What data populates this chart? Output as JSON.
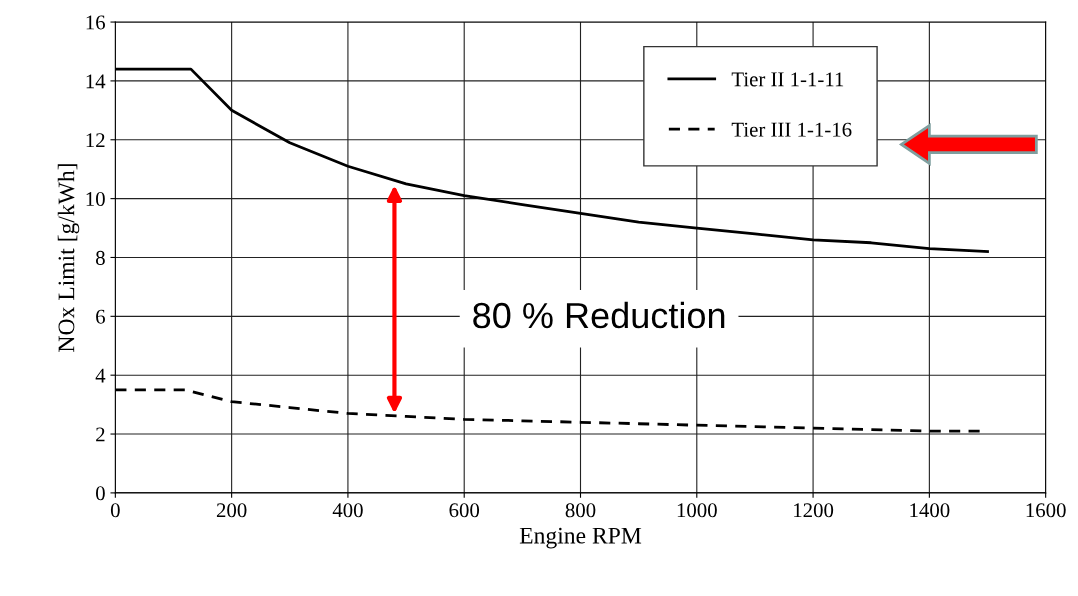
{
  "chart_data": {
    "type": "line",
    "xlabel": "Engine RPM",
    "ylabel": "NOx Limit [g/kWh]",
    "xlim": [
      0,
      1600
    ],
    "xticks": [
      0,
      200,
      400,
      600,
      800,
      1000,
      1200,
      1400,
      1600
    ],
    "ylim": [
      0,
      16
    ],
    "yticks": [
      0,
      2,
      4,
      6,
      8,
      10,
      12,
      14,
      16
    ],
    "grid": true,
    "legend": "top right",
    "marker": "none",
    "series": [
      {
        "name": "Tier II 1-1-11",
        "color": "#000000",
        "line_style": "solid",
        "x": [
          0,
          130,
          200,
          300,
          400,
          500,
          600,
          700,
          800,
          900,
          1000,
          1100,
          1200,
          1300,
          1400,
          1500
        ],
        "values": [
          14.4,
          14.4,
          13.0,
          11.9,
          11.1,
          10.5,
          10.1,
          9.8,
          9.5,
          9.2,
          9.0,
          8.8,
          8.6,
          8.5,
          8.3,
          8.2
        ]
      },
      {
        "name": "Tier III 1-1-16",
        "color": "#000000",
        "line_style": "dashed",
        "x": [
          0,
          120,
          200,
          300,
          400,
          500,
          600,
          700,
          800,
          900,
          1000,
          1100,
          1200,
          1300,
          1400,
          1500
        ],
        "values": [
          3.5,
          3.5,
          3.1,
          2.9,
          2.7,
          2.6,
          2.5,
          2.45,
          2.4,
          2.35,
          2.3,
          2.25,
          2.2,
          2.15,
          2.1,
          2.1
        ]
      }
    ],
    "annotations": [
      "80 % Reduction"
    ]
  }
}
